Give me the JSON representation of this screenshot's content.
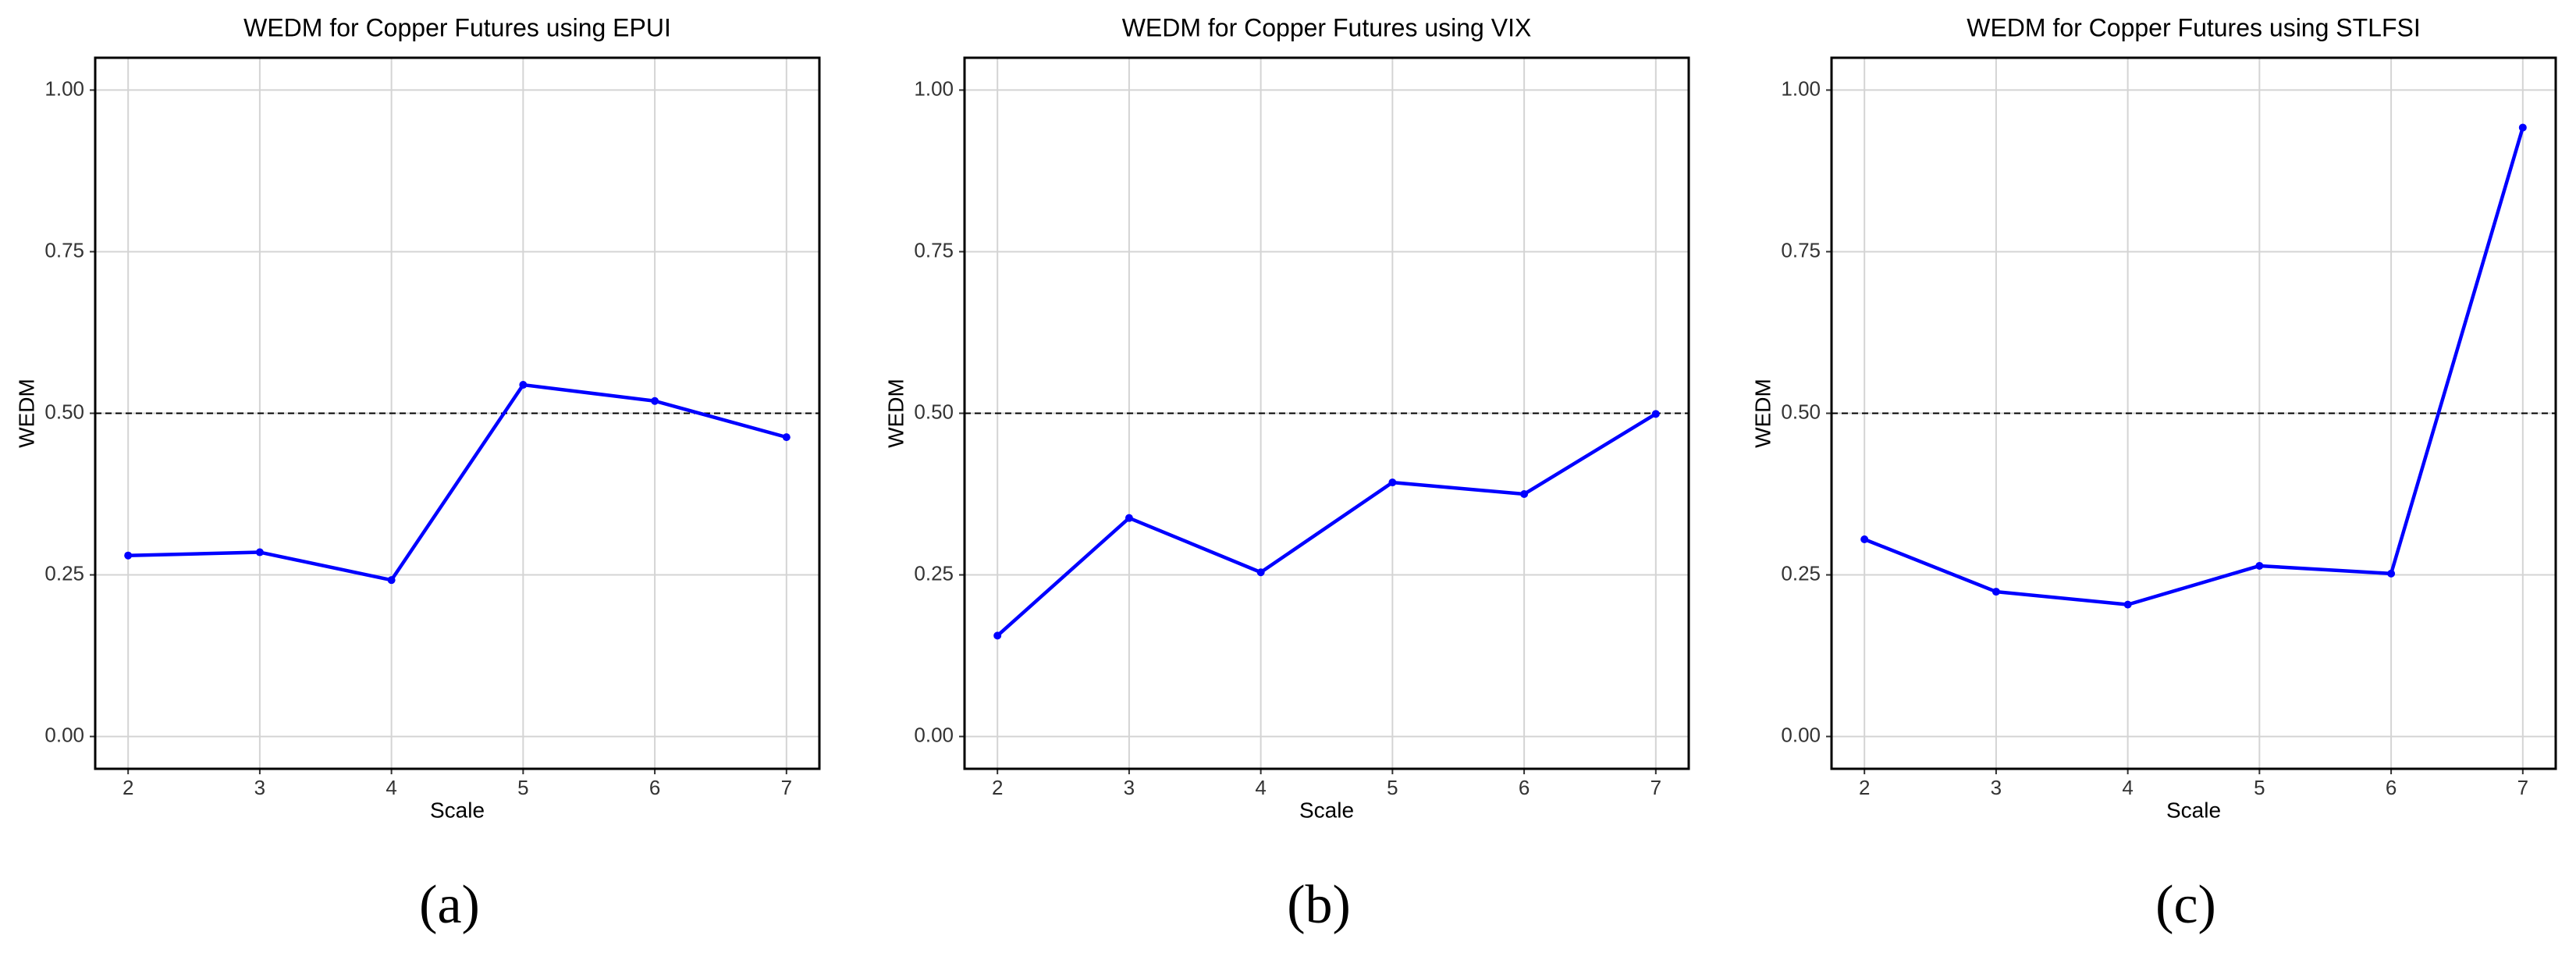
{
  "chart_data": [
    {
      "type": "line",
      "title": "WEDM for Copper Futures using EPUI",
      "xlabel": "Scale",
      "ylabel": "WEDM",
      "caption": "(a)",
      "x": [
        2,
        3,
        4,
        5,
        6,
        7
      ],
      "values": [
        0.28,
        0.285,
        0.242,
        0.544,
        0.519,
        0.463
      ],
      "color": "#0000ff",
      "xlim": [
        1.75,
        7.25
      ],
      "ylim": [
        -0.05,
        1.05
      ],
      "xticks": [
        2,
        3,
        4,
        5,
        6,
        7
      ],
      "yticks": [
        {
          "value": 0,
          "label": "0.00"
        },
        {
          "value": 0.25,
          "label": "0.25"
        },
        {
          "value": 0.5,
          "label": "0.50"
        },
        {
          "value": 0.75,
          "label": "0.75"
        },
        {
          "value": 1,
          "label": "1.00"
        }
      ],
      "hline": 0.5,
      "grid": true
    },
    {
      "type": "line",
      "title": "WEDM for Copper Futures using VIX",
      "xlabel": "Scale",
      "ylabel": "WEDM",
      "caption": "(b)",
      "x": [
        2,
        3,
        4,
        5,
        6,
        7
      ],
      "values": [
        0.156,
        0.338,
        0.254,
        0.393,
        0.375,
        0.499
      ],
      "color": "#0000ff",
      "xlim": [
        1.75,
        7.25
      ],
      "ylim": [
        -0.05,
        1.05
      ],
      "xticks": [
        2,
        3,
        4,
        5,
        6,
        7
      ],
      "yticks": [
        {
          "value": 0,
          "label": "0.00"
        },
        {
          "value": 0.25,
          "label": "0.25"
        },
        {
          "value": 0.5,
          "label": "0.50"
        },
        {
          "value": 0.75,
          "label": "0.75"
        },
        {
          "value": 1,
          "label": "1.00"
        }
      ],
      "hline": 0.5,
      "grid": true
    },
    {
      "type": "line",
      "title": "WEDM for Copper Futures using STLFSI",
      "xlabel": "Scale",
      "ylabel": "WEDM",
      "caption": "(c)",
      "x": [
        2,
        3,
        4,
        5,
        6,
        7
      ],
      "values": [
        0.305,
        0.224,
        0.204,
        0.264,
        0.252,
        0.942
      ],
      "color": "#0000ff",
      "xlim": [
        1.75,
        7.25
      ],
      "ylim": [
        -0.05,
        1.05
      ],
      "xticks": [
        2,
        3,
        4,
        5,
        6,
        7
      ],
      "yticks": [
        {
          "value": 0,
          "label": "0.00"
        },
        {
          "value": 0.25,
          "label": "0.25"
        },
        {
          "value": 0.5,
          "label": "0.50"
        },
        {
          "value": 0.75,
          "label": "0.75"
        },
        {
          "value": 1,
          "label": "1.00"
        }
      ],
      "hline": 0.5,
      "grid": true
    }
  ]
}
